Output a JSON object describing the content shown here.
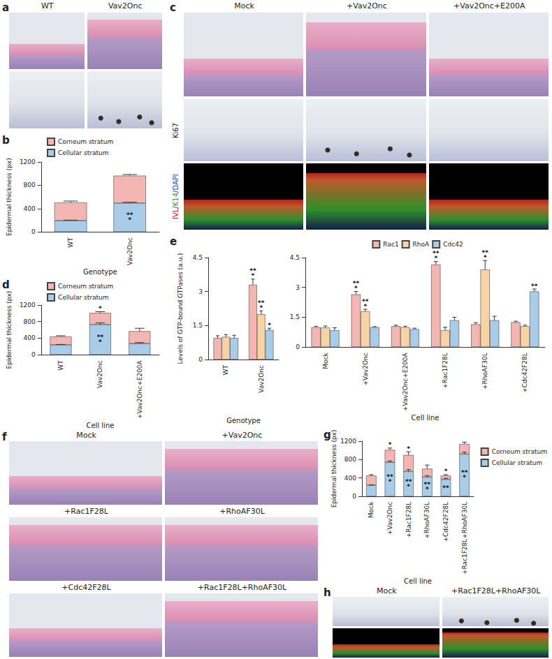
{
  "figure": {
    "a": {
      "label": "a",
      "columns": [
        "WT",
        "Vav2Onc"
      ]
    },
    "c": {
      "label": "c",
      "columns": [
        "Mock",
        "+Vav2Onc",
        "+Vav2Onc+E200A"
      ],
      "row_labels": [
        null,
        "Ki67",
        "IVL/K14/DAPI"
      ]
    },
    "f": {
      "label": "f",
      "images": [
        "Mock",
        "+Vav2Onc",
        "+Rac1F28L",
        "+RhoAF30L",
        "+Cdc42F28L",
        "+Rac1F28L+RhoAF30L"
      ]
    },
    "h": {
      "label": "h",
      "columns": [
        "Mock",
        "+Rac1F28L+RhoAF30L"
      ]
    }
  },
  "chart_data": [
    {
      "panel": "b",
      "type": "bar",
      "stacked": true,
      "grid": false,
      "legend": "top-left",
      "x_label": "Genotype",
      "y_label": "Epidermal thickness (px)",
      "categories": [
        "WT",
        "Vav2Onc"
      ],
      "ylim": [
        0,
        1200
      ],
      "yticks": [
        0,
        400,
        800,
        1200
      ],
      "series": [
        {
          "name": "Corneum stratum",
          "color": "#f4b6b3",
          "values": [
            310,
            470
          ],
          "errors": [
            25,
            20
          ],
          "significance": [
            null,
            null
          ]
        },
        {
          "name": "Cellular stratum",
          "color": "#a9cde8",
          "values": [
            195,
            495
          ],
          "errors": [
            8,
            15
          ],
          "significance": [
            null,
            "***"
          ]
        }
      ]
    },
    {
      "panel": "d",
      "type": "bar",
      "stacked": true,
      "grid": false,
      "legend": "top-left",
      "x_label": "Cell line",
      "y_label": "Epidermal thickness (px)",
      "categories": [
        "WT",
        "Vav2Onc",
        "+Vav2Onc+E200A"
      ],
      "ylim": [
        0,
        1200
      ],
      "yticks": [
        0,
        400,
        800,
        1200
      ],
      "series": [
        {
          "name": "Corneum stratum",
          "color": "#f4b6b3",
          "values": [
            200,
            280,
            300
          ],
          "errors": [
            20,
            30,
            70
          ],
          "significance": [
            null,
            "*",
            null
          ]
        },
        {
          "name": "Cellular stratum",
          "color": "#a9cde8",
          "values": [
            240,
            730,
            270
          ],
          "errors": [
            10,
            40,
            25
          ],
          "significance": [
            null,
            "***",
            null
          ]
        }
      ]
    },
    {
      "panel": "e",
      "type": "bar",
      "grid": false,
      "x_label": "Genotype",
      "y_label": "Levels of GTP-bound GTPases (a.u.)",
      "categories": [
        "WT",
        "Vav2Onc"
      ],
      "ylim": [
        0,
        4.5
      ],
      "yticks": [
        0,
        1.5,
        3,
        4.5
      ],
      "series": [
        {
          "name": "Rac1",
          "color": "#f4b6b3",
          "values": [
            0.95,
            3.3
          ],
          "errors": [
            0.1,
            0.25
          ],
          "significance": [
            null,
            "***"
          ]
        },
        {
          "name": "RhoA",
          "color": "#f9d3a6",
          "values": [
            1.0,
            2.0
          ],
          "errors": [
            0.1,
            0.15
          ],
          "significance": [
            null,
            "***"
          ]
        },
        {
          "name": "Cdc42",
          "color": "#a9cde8",
          "values": [
            0.95,
            1.3
          ],
          "errors": [
            0.12,
            0.08
          ],
          "significance": [
            null,
            "*"
          ]
        }
      ]
    },
    {
      "type": "bar",
      "grid": false,
      "legend": "top",
      "x_label": "Cell line",
      "categories": [
        "Mock",
        "+Vav2Onc",
        "+Vav2Onc+E200A",
        "+Rac1F28L",
        "+RhoAF30L",
        "+Cdc42F28L"
      ],
      "ylim": [
        0,
        4.5
      ],
      "yticks": [
        0,
        1.5,
        3,
        4.5
      ],
      "series": [
        {
          "name": "Rac1",
          "color": "#f4b6b3",
          "values": [
            1.0,
            2.65,
            1.05,
            4.15,
            1.15,
            1.25
          ],
          "errors": [
            0.05,
            0.15,
            0.05,
            0.15,
            0.08,
            0.05
          ],
          "significance": [
            null,
            "***",
            null,
            "***",
            null,
            null
          ]
        },
        {
          "name": "RhoA",
          "color": "#f9d3a6",
          "values": [
            0.98,
            1.8,
            1.0,
            0.85,
            3.9,
            1.05
          ],
          "errors": [
            0.08,
            0.1,
            0.05,
            0.15,
            0.45,
            0.05
          ],
          "significance": [
            null,
            "***",
            null,
            null,
            "***",
            null
          ]
        },
        {
          "name": "Cdc42",
          "color": "#a9cde8",
          "values": [
            0.85,
            1.0,
            0.9,
            1.35,
            1.35,
            2.8
          ],
          "errors": [
            0.12,
            0.03,
            0.05,
            0.15,
            0.2,
            0.12
          ],
          "significance": [
            null,
            null,
            null,
            null,
            null,
            "**"
          ]
        }
      ]
    },
    {
      "panel": "g",
      "type": "bar",
      "stacked": true,
      "grid": false,
      "legend": "right",
      "x_label": "Cell line",
      "y_label": "Epidermal thickness (px)",
      "categories": [
        "Mock",
        "+Vav2Onc",
        "+Rac1F28L",
        "+RhoAF30L",
        "+Cdc42F28L",
        "+Rac1F28L+RhoAF30L"
      ],
      "ylim": [
        0,
        1200
      ],
      "yticks": [
        0,
        400,
        800,
        1200
      ],
      "series": [
        {
          "name": "Corneum stratum",
          "color": "#f4b6b3",
          "values": [
            210,
            270,
            360,
            180,
            80,
            220
          ],
          "errors": [
            20,
            40,
            70,
            80,
            20,
            40
          ],
          "significance": [
            null,
            "*",
            "*",
            null,
            "*",
            null
          ]
        },
        {
          "name": "Cellular stratum",
          "color": "#a9cde8",
          "values": [
            240,
            740,
            540,
            420,
            370,
            920
          ],
          "errors": [
            10,
            30,
            40,
            30,
            20,
            40
          ],
          "significance": [
            null,
            "***",
            "***",
            "***",
            "**",
            "***"
          ]
        }
      ]
    }
  ]
}
